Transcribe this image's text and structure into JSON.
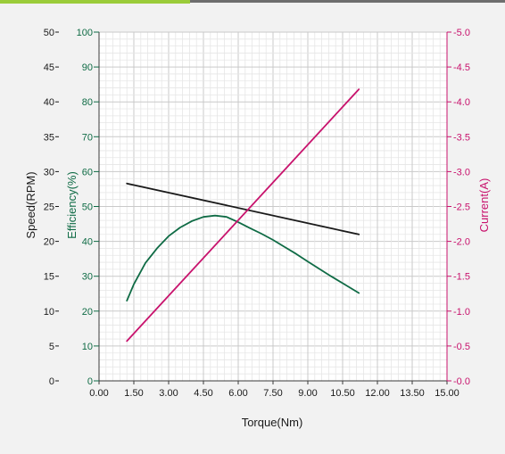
{
  "chart_data": {
    "type": "line",
    "xlabel": "Torque(Nm)",
    "x_ticks": [
      "0.00",
      "1.50",
      "3.00",
      "4.50",
      "6.00",
      "7.50",
      "9.00",
      "10.50",
      "12.00",
      "13.50",
      "15.00"
    ],
    "xlim": [
      0,
      15
    ],
    "grid": true,
    "axes": {
      "speed": {
        "label": "Speed(RPM)",
        "side": "left-outer",
        "ylim": [
          0,
          50
        ],
        "ticks": [
          "0",
          "5",
          "10",
          "15",
          "20",
          "25",
          "30",
          "35",
          "40",
          "45",
          "50"
        ],
        "color": "#1a1a1a"
      },
      "efficiency": {
        "label": "Efficiency(%)",
        "side": "left-inner",
        "ylim": [
          0,
          100
        ],
        "ticks": [
          "0",
          "10",
          "20",
          "30",
          "40",
          "50",
          "60",
          "70",
          "80",
          "90",
          "100"
        ],
        "color": "#0f6b45"
      },
      "current": {
        "label": "Current(A)",
        "side": "right",
        "ylim": [
          0,
          5
        ],
        "ticks": [
          "-0.0",
          "-0.5",
          "-1.0",
          "-1.5",
          "-2.0",
          "-2.5",
          "-3.0",
          "-3.5",
          "-4.0",
          "-4.5",
          "-5.0"
        ],
        "color": "#c8136d"
      }
    },
    "series": [
      {
        "axis": "speed",
        "color": "#1a1a1a",
        "x": [
          1.2,
          11.2
        ],
        "y": [
          28.3,
          21.0
        ]
      },
      {
        "axis": "efficiency",
        "color": "#0f6b45",
        "x": [
          1.2,
          1.5,
          2.0,
          2.5,
          3.0,
          3.5,
          4.0,
          4.5,
          5.0,
          5.5,
          6.0,
          6.5,
          7.0,
          7.5,
          8.0,
          8.5,
          9.0,
          9.5,
          10.0,
          10.5,
          11.2
        ],
        "y": [
          23.0,
          27.7,
          33.8,
          38.0,
          41.5,
          44.0,
          45.8,
          47.0,
          47.4,
          47.0,
          45.5,
          43.8,
          42.2,
          40.4,
          38.4,
          36.4,
          34.2,
          32.1,
          30.0,
          28.0,
          25.2
        ]
      },
      {
        "axis": "current",
        "color": "#c8136d",
        "x": [
          1.2,
          11.2
        ],
        "y": [
          0.57,
          4.18
        ]
      }
    ]
  }
}
